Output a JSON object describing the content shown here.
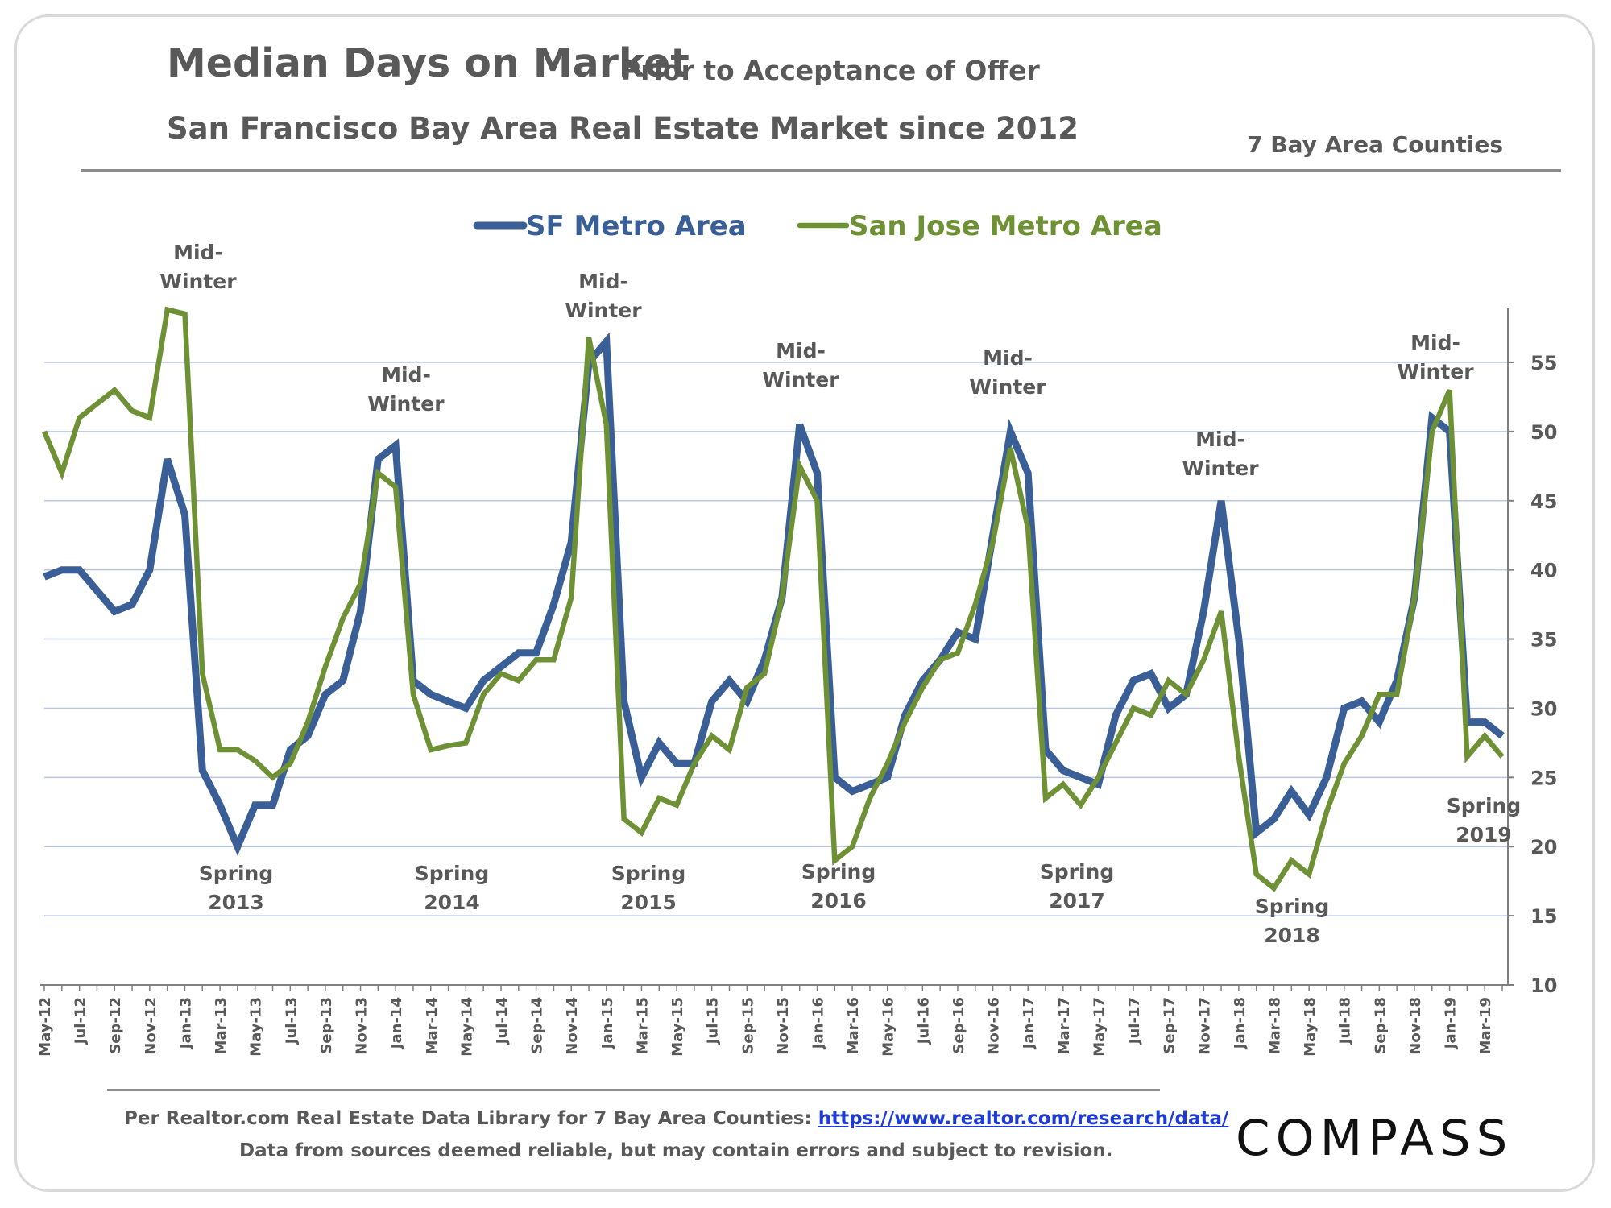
{
  "header": {
    "title": "Median Days on Market",
    "title_suffix": "Prior to Acceptance of Offer",
    "subtitle": "San Francisco Bay Area Real Estate Market since 2012",
    "region_note": "7 Bay Area Counties"
  },
  "footer": {
    "source_prefix": "Per Realtor.com Real Estate Data Library for 7 Bay Area Counties:",
    "source_link": "https://www.realtor.com/research/data/",
    "disclaimer": "Data from sources deemed reliable, but may contain errors and subject to revision.",
    "logo": "COMPASS"
  },
  "colors": {
    "sf": "#3a5f96",
    "sj": "#6f9136",
    "grid": "#b8c8e0",
    "text": "#595959"
  },
  "chart_data": {
    "type": "line",
    "title": "Median Days on Market",
    "subtitle": "San Francisco Bay Area Real Estate Market since 2012",
    "xlabel": "",
    "ylabel": "",
    "ylim": [
      10,
      58
    ],
    "yticks": [
      10,
      15,
      20,
      25,
      30,
      35,
      40,
      45,
      50,
      55
    ],
    "y_axis_side": "right",
    "grid": true,
    "legend_position": "top-center",
    "x_tick_labels": [
      "May-12",
      "Jul-12",
      "Sep-12",
      "Nov-12",
      "Jan-13",
      "Mar-13",
      "May-13",
      "Jul-13",
      "Sep-13",
      "Nov-13",
      "Jan-14",
      "Mar-14",
      "May-14",
      "Jul-14",
      "Sep-14",
      "Nov-14",
      "Jan-15",
      "Mar-15",
      "May-15",
      "Jul-15",
      "Sep-15",
      "Nov-15",
      "Jan-16",
      "Mar-16",
      "May-16",
      "Jul-16",
      "Sep-16",
      "Nov-16",
      "Jan-17",
      "Mar-17",
      "May-17",
      "Jul-17",
      "Sep-17",
      "Nov-17",
      "Jan-18",
      "Mar-18",
      "May-18",
      "Jul-18",
      "Sep-18",
      "Nov-18",
      "Jan-19",
      "Mar-19"
    ],
    "x": [
      "May-12",
      "Jun-12",
      "Jul-12",
      "Aug-12",
      "Sep-12",
      "Oct-12",
      "Nov-12",
      "Dec-12",
      "Jan-13",
      "Feb-13",
      "Mar-13",
      "Apr-13",
      "May-13",
      "Jun-13",
      "Jul-13",
      "Aug-13",
      "Sep-13",
      "Oct-13",
      "Nov-13",
      "Dec-13",
      "Jan-14",
      "Feb-14",
      "Mar-14",
      "Apr-14",
      "May-14",
      "Jun-14",
      "Jul-14",
      "Aug-14",
      "Sep-14",
      "Oct-14",
      "Nov-14",
      "Dec-14",
      "Jan-15",
      "Feb-15",
      "Mar-15",
      "Apr-15",
      "May-15",
      "Jun-15",
      "Jul-15",
      "Aug-15",
      "Sep-15",
      "Oct-15",
      "Nov-15",
      "Dec-15",
      "Jan-16",
      "Feb-16",
      "Mar-16",
      "Apr-16",
      "May-16",
      "Jun-16",
      "Jul-16",
      "Aug-16",
      "Sep-16",
      "Oct-16",
      "Nov-16",
      "Dec-16",
      "Jan-17",
      "Feb-17",
      "Mar-17",
      "Apr-17",
      "May-17",
      "Jun-17",
      "Jul-17",
      "Aug-17",
      "Sep-17",
      "Oct-17",
      "Nov-17",
      "Dec-17",
      "Jan-18",
      "Feb-18",
      "Mar-18",
      "Apr-18",
      "May-18",
      "Jun-18",
      "Jul-18",
      "Aug-18",
      "Sep-18",
      "Oct-18",
      "Nov-18",
      "Dec-18",
      "Jan-19",
      "Feb-19",
      "Mar-19",
      "Apr-19"
    ],
    "series": [
      {
        "name": "SF Metro Area",
        "values": [
          39.5,
          40,
          40,
          38.5,
          37,
          37.5,
          40,
          48,
          44,
          25.5,
          23,
          20,
          23,
          23,
          27,
          28,
          31,
          32,
          37,
          48,
          49,
          32,
          31,
          30.5,
          30,
          32,
          33,
          34,
          34,
          37.5,
          42,
          55,
          56.5,
          30.5,
          25,
          27.5,
          26,
          26,
          30.5,
          32,
          30.5,
          33.5,
          38,
          50.5,
          47,
          25,
          24,
          24.5,
          25,
          29.5,
          32,
          33.5,
          35.5,
          35,
          42.5,
          50,
          47,
          27,
          25.5,
          25,
          24.5,
          29.5,
          32,
          32.5,
          30,
          31,
          37,
          45,
          35,
          21,
          22,
          24,
          22.3,
          25,
          30,
          30.5,
          29,
          32,
          38,
          51,
          50,
          29,
          29,
          28
        ]
      },
      {
        "name": "San Jose Metro Area",
        "values": [
          50,
          47,
          51,
          52,
          53,
          51.5,
          51,
          58.8,
          58.5,
          32.5,
          27,
          27,
          26.2,
          25,
          26,
          29,
          33,
          36.5,
          39,
          47,
          46,
          31,
          27,
          27.3,
          27.5,
          31,
          32.5,
          32,
          33.5,
          33.5,
          38,
          56.8,
          50.5,
          22,
          21,
          23.5,
          23,
          26,
          28,
          27,
          31.5,
          32.5,
          38,
          47.5,
          45,
          19,
          20,
          23.5,
          26,
          29,
          31.5,
          33.5,
          34,
          37.5,
          42,
          48.8,
          43,
          23.5,
          24.5,
          23,
          25,
          27.5,
          30,
          29.5,
          32,
          31,
          33.5,
          37,
          26.5,
          18,
          17,
          19,
          18,
          22.5,
          26,
          28,
          31,
          31,
          38,
          50,
          53,
          26.5,
          28,
          26.5
        ]
      }
    ],
    "annotations": [
      {
        "text": [
          "Mid-",
          "Winter"
        ],
        "near": "Dec-12"
      },
      {
        "text": [
          "Spring",
          "2013"
        ],
        "near": "May-13"
      },
      {
        "text": [
          "Mid-",
          "Winter"
        ],
        "near": "Dec-13"
      },
      {
        "text": [
          "Spring",
          "2014"
        ],
        "near": "May-14"
      },
      {
        "text": [
          "Mid-",
          "Winter"
        ],
        "near": "Dec-14"
      },
      {
        "text": [
          "Spring",
          "2015"
        ],
        "near": "Apr-15"
      },
      {
        "text": [
          "Mid-",
          "Winter"
        ],
        "near": "Dec-15"
      },
      {
        "text": [
          "Spring",
          "2016"
        ],
        "near": "Mar-16"
      },
      {
        "text": [
          "Mid-",
          "Winter"
        ],
        "near": "Dec-16"
      },
      {
        "text": [
          "Spring",
          "2017"
        ],
        "near": "Apr-17"
      },
      {
        "text": [
          "Mid-",
          "Winter"
        ],
        "near": "Dec-17"
      },
      {
        "text": [
          "Spring",
          "2018"
        ],
        "near": "May-18"
      },
      {
        "text": [
          "Mid-",
          "Winter"
        ],
        "near": "Jan-19"
      },
      {
        "text": [
          "Spring",
          "2019"
        ],
        "near": "Apr-19"
      }
    ]
  }
}
